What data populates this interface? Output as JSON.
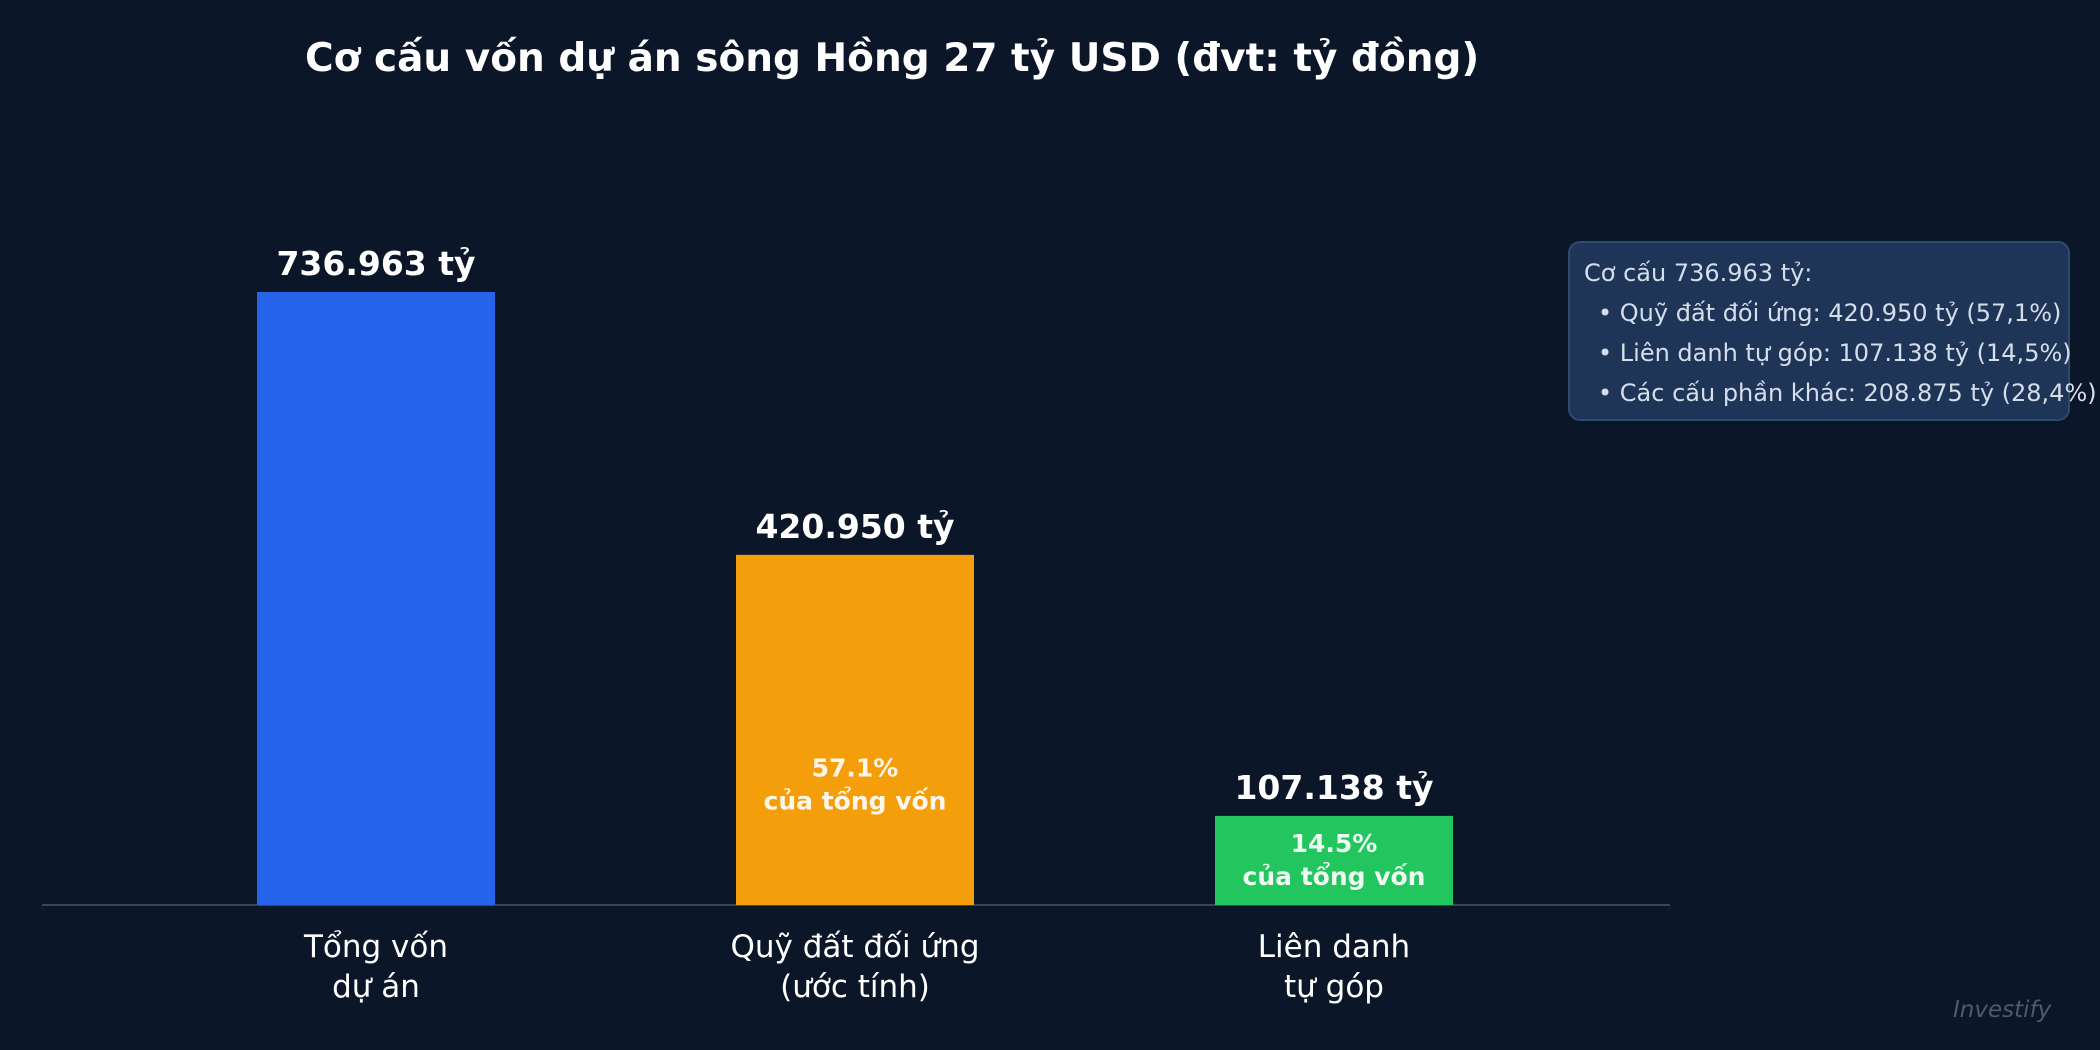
{
  "title": "Cơ cấu vốn dự án sông Hồng 27 tỷ USD  (đvt: tỷ đồng)",
  "chart_data": {
    "type": "bar",
    "title": "Cơ cấu vốn dự án sông Hồng 27 tỷ USD  (đvt: tỷ đồng)",
    "xlabel": "",
    "ylabel": "",
    "ylim": [
      0,
      736963
    ],
    "grid": false,
    "categories": [
      [
        "Tổng vốn",
        "dự án"
      ],
      [
        "Quỹ đất đối ứng",
        "(ước tính)"
      ],
      [
        "Liên danh",
        "tự góp"
      ]
    ],
    "values": [
      736963,
      420950,
      107138
    ],
    "value_labels": [
      "736.963 tỷ",
      "420.950 tỷ",
      "107.138 tỷ"
    ],
    "inner_labels": [
      [],
      [
        "57.1%",
        "của tổng vốn"
      ],
      [
        "14.5%",
        "của tổng vốn"
      ]
    ],
    "colors": [
      "#2563eb",
      "#f59e0b",
      "#22c55e"
    ]
  },
  "note": {
    "heading": "Cơ cấu 736.963 tỷ:",
    "items": [
      "• Quỹ đất đối ứng: 420.950 tỷ (57,1%)",
      "• Liên danh tự góp: 107.138 tỷ (14,5%)",
      "• Các cấu phần khác: 208.875 tỷ (28,4%)"
    ]
  },
  "watermark": "Investify"
}
